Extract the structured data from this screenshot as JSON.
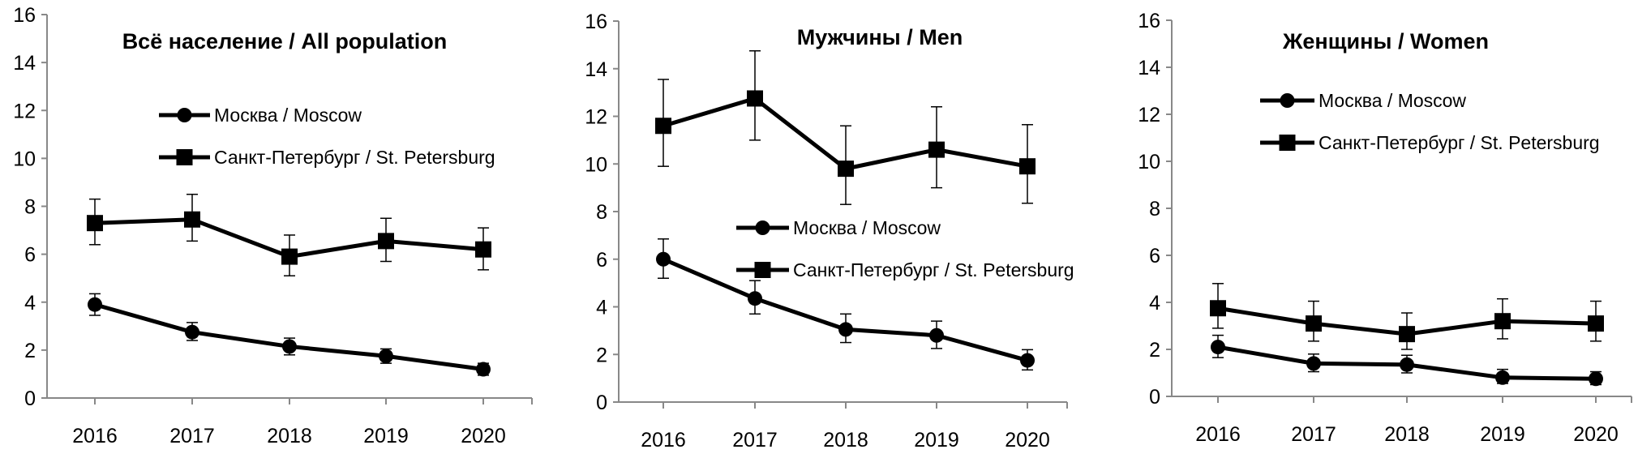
{
  "chart_data": [
    {
      "type": "line",
      "title": "Всё население / All population",
      "categories": [
        "2016",
        "2017",
        "2018",
        "2019",
        "2020"
      ],
      "ylim": [
        0,
        16
      ],
      "yticks": [
        "0",
        "2",
        "4",
        "6",
        "8",
        "10",
        "12",
        "14",
        "16"
      ],
      "legend_position": "upper-center",
      "series": [
        {
          "name": "Москва / Moscow",
          "marker": "circle",
          "values": [
            3.9,
            2.75,
            2.15,
            1.75,
            1.2
          ],
          "err_low": [
            3.45,
            2.4,
            1.8,
            1.45,
            0.95
          ],
          "err_high": [
            4.35,
            3.15,
            2.5,
            2.05,
            1.45
          ]
        },
        {
          "name": "Санкт-Петербург / St. Petersburg",
          "marker": "square",
          "values": [
            7.3,
            7.45,
            5.9,
            6.55,
            6.2
          ],
          "err_low": [
            6.4,
            6.55,
            5.1,
            5.7,
            5.35
          ],
          "err_high": [
            8.3,
            8.5,
            6.8,
            7.5,
            7.1
          ]
        }
      ]
    },
    {
      "type": "line",
      "title": "Мужчины / Men",
      "categories": [
        "2016",
        "2017",
        "2018",
        "2019",
        "2020"
      ],
      "ylim": [
        0,
        16
      ],
      "yticks": [
        "0",
        "2",
        "4",
        "6",
        "8",
        "10",
        "12",
        "14",
        "16"
      ],
      "legend_position": "center",
      "series": [
        {
          "name": "Москва / Moscow",
          "marker": "circle",
          "values": [
            6.0,
            4.35,
            3.05,
            2.8,
            1.75
          ],
          "err_low": [
            5.2,
            3.7,
            2.5,
            2.25,
            1.35
          ],
          "err_high": [
            6.85,
            5.1,
            3.7,
            3.4,
            2.2
          ]
        },
        {
          "name": "Санкт-Петербург / St. Petersburg",
          "marker": "square",
          "values": [
            11.6,
            12.75,
            9.8,
            10.6,
            9.9
          ],
          "err_low": [
            9.9,
            11.0,
            8.3,
            9.0,
            8.35
          ],
          "err_high": [
            13.55,
            14.75,
            11.6,
            12.4,
            11.65
          ]
        }
      ]
    },
    {
      "type": "line",
      "title": "Женщины / Women",
      "categories": [
        "2016",
        "2017",
        "2018",
        "2019",
        "2020"
      ],
      "ylim": [
        0,
        16
      ],
      "yticks": [
        "0",
        "2",
        "4",
        "6",
        "8",
        "10",
        "12",
        "14",
        "16"
      ],
      "legend_position": "upper-center",
      "series": [
        {
          "name": "Москва / Moscow",
          "marker": "circle",
          "values": [
            2.1,
            1.4,
            1.35,
            0.8,
            0.75
          ],
          "err_low": [
            1.65,
            1.05,
            1.0,
            0.55,
            0.5
          ],
          "err_high": [
            2.6,
            1.8,
            1.75,
            1.15,
            1.05
          ]
        },
        {
          "name": "Санкт-Петербург / St. Petersburg",
          "marker": "square",
          "values": [
            3.75,
            3.1,
            2.65,
            3.2,
            3.1
          ],
          "err_low": [
            2.9,
            2.35,
            2.0,
            2.45,
            2.35
          ],
          "err_high": [
            4.8,
            4.05,
            3.55,
            4.15,
            4.05
          ]
        }
      ]
    }
  ]
}
